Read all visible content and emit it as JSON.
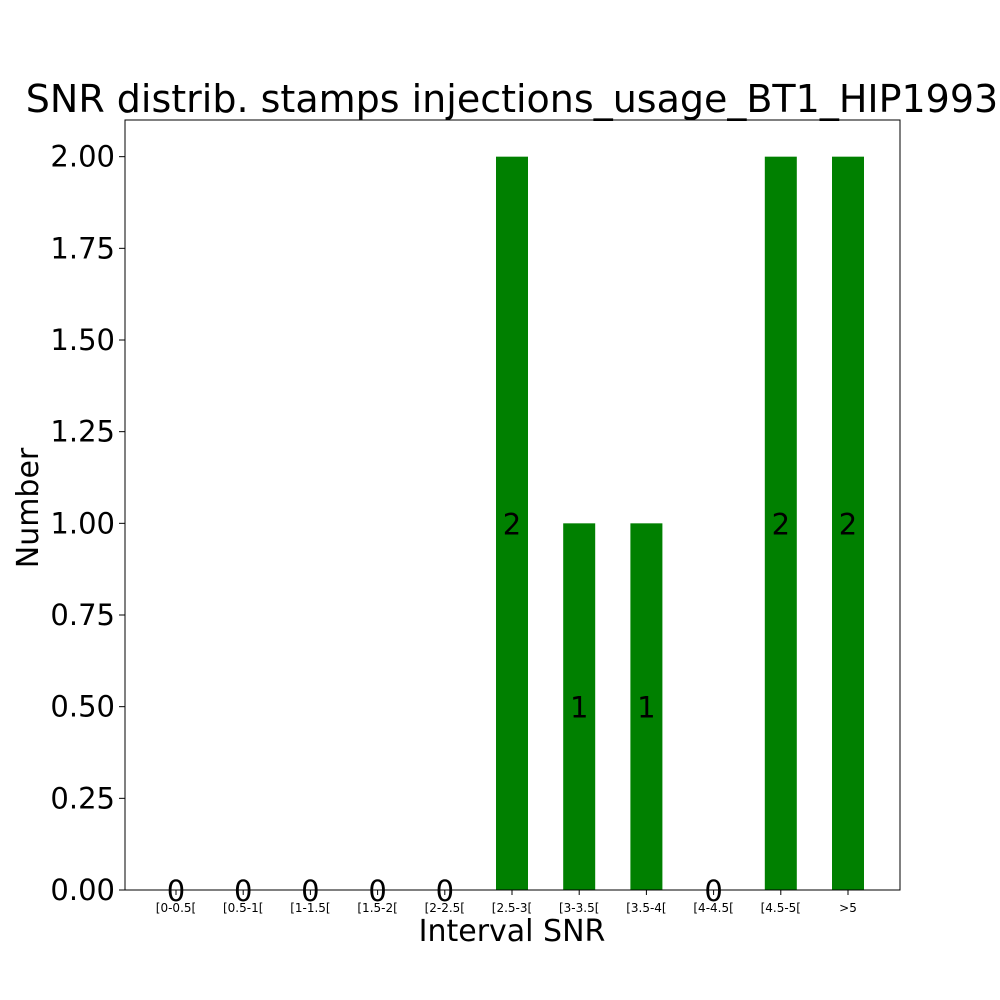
{
  "chart_data": {
    "type": "bar",
    "title": "SNR distrib. stamps injections_usage_BT1_HIP1993",
    "xlabel": "Interval SNR",
    "ylabel": "Number",
    "categories": [
      "[0-0.5[",
      "[0.5-1[",
      "[1-1.5[",
      "[1.5-2[",
      "[2-2.5[",
      "[2.5-3[",
      "[3-3.5[",
      "[3.5-4[",
      "[4-4.5[",
      "[4.5-5[",
      ">5"
    ],
    "values": [
      0,
      0,
      0,
      0,
      0,
      2,
      1,
      1,
      0,
      2,
      2
    ],
    "data_labels": [
      "0",
      "0",
      "0",
      "0",
      "0",
      "2",
      "1",
      "1",
      "0",
      "2",
      "2"
    ],
    "ylim": [
      0,
      2.1
    ],
    "yticks": [
      "0.00",
      "0.25",
      "0.50",
      "0.75",
      "1.00",
      "1.25",
      "1.50",
      "1.75",
      "2.00"
    ],
    "bar_color": "#008000",
    "grid": false,
    "legend": false
  }
}
